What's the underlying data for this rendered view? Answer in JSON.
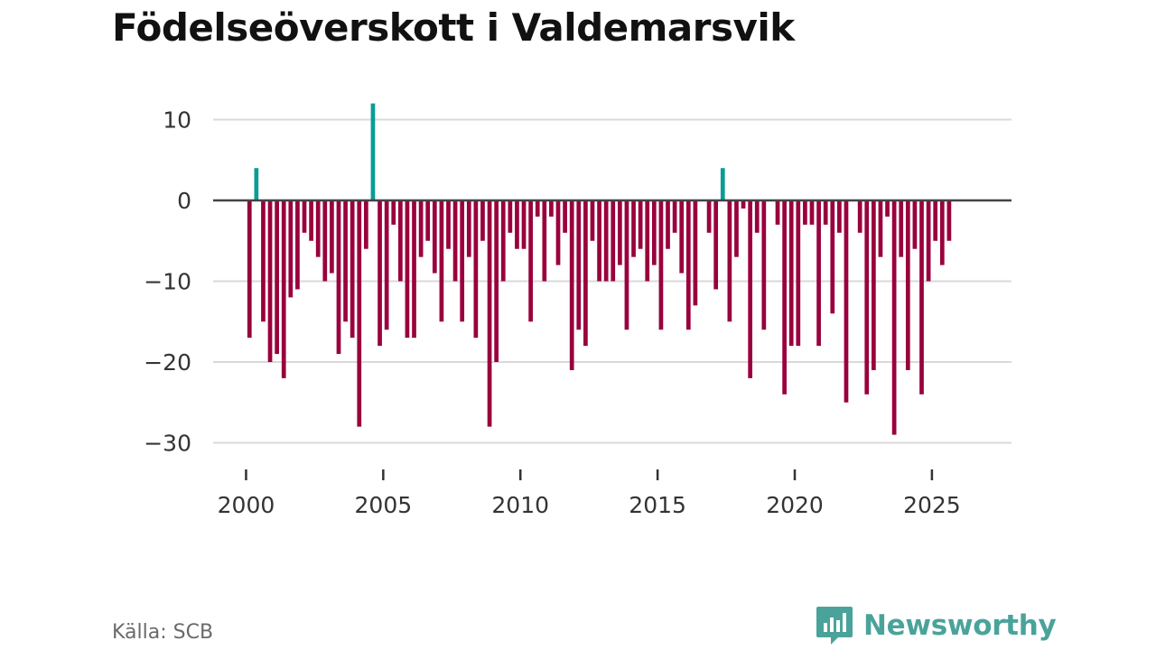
{
  "title": "Födelseöverskott i Valdemarsvik",
  "source": "Källa: SCB",
  "brand": {
    "name": "Newsworthy",
    "logo_icon": "newsworthy-chart-bubble-icon"
  },
  "colors": {
    "negative": "#99003d",
    "positive": "#0a9c96",
    "zero_line": "#444444",
    "grid": "#d9d9d9",
    "tick_text": "#333333",
    "brand": "#4aa39b"
  },
  "chart_data": {
    "type": "bar",
    "title": "Födelseöverskott i Valdemarsvik",
    "xlabel": "",
    "ylabel": "",
    "frequency": "quarterly",
    "x_start": 2000.0,
    "x_step": 0.25,
    "xlim": [
      1998.8,
      2027.9
    ],
    "ylim": [
      -32,
      12.5
    ],
    "yticks": [
      10,
      0,
      -10,
      -20,
      -30
    ],
    "ytick_labels": [
      "10",
      "0",
      "−10",
      "−20",
      "−30"
    ],
    "xticks": [
      2000,
      2005,
      2010,
      2015,
      2020,
      2025
    ],
    "xtick_labels": [
      "2000",
      "2005",
      "2010",
      "2015",
      "2020",
      "2025"
    ],
    "grid": true,
    "values": [
      -17,
      4,
      -15,
      -20,
      -19,
      -22,
      -12,
      -11,
      -4,
      -5,
      -7,
      -10,
      -9,
      -19,
      -15,
      -17,
      -28,
      -6,
      12,
      -18,
      -16,
      -3,
      -10,
      -17,
      -17,
      -7,
      -5,
      -9,
      -15,
      -6,
      -10,
      -15,
      -7,
      -17,
      -5,
      -28,
      -20,
      -10,
      -4,
      -6,
      -6,
      -15,
      -2,
      -10,
      -2,
      -8,
      -4,
      -21,
      -16,
      -18,
      -5,
      -10,
      -10,
      -10,
      -8,
      -16,
      -7,
      -6,
      -10,
      -8,
      -16,
      -6,
      -4,
      -9,
      -16,
      -13,
      0,
      -4,
      -11,
      4,
      -15,
      -7,
      -1,
      -22,
      -4,
      -16,
      0,
      -3,
      -24,
      -18,
      -18,
      -3,
      -3,
      -18,
      -3,
      -14,
      -4,
      -25,
      0,
      -4,
      -24,
      -21,
      -7,
      -2,
      -29,
      -7,
      -21,
      -6,
      -24,
      -10,
      -5,
      -8,
      -5
    ]
  }
}
